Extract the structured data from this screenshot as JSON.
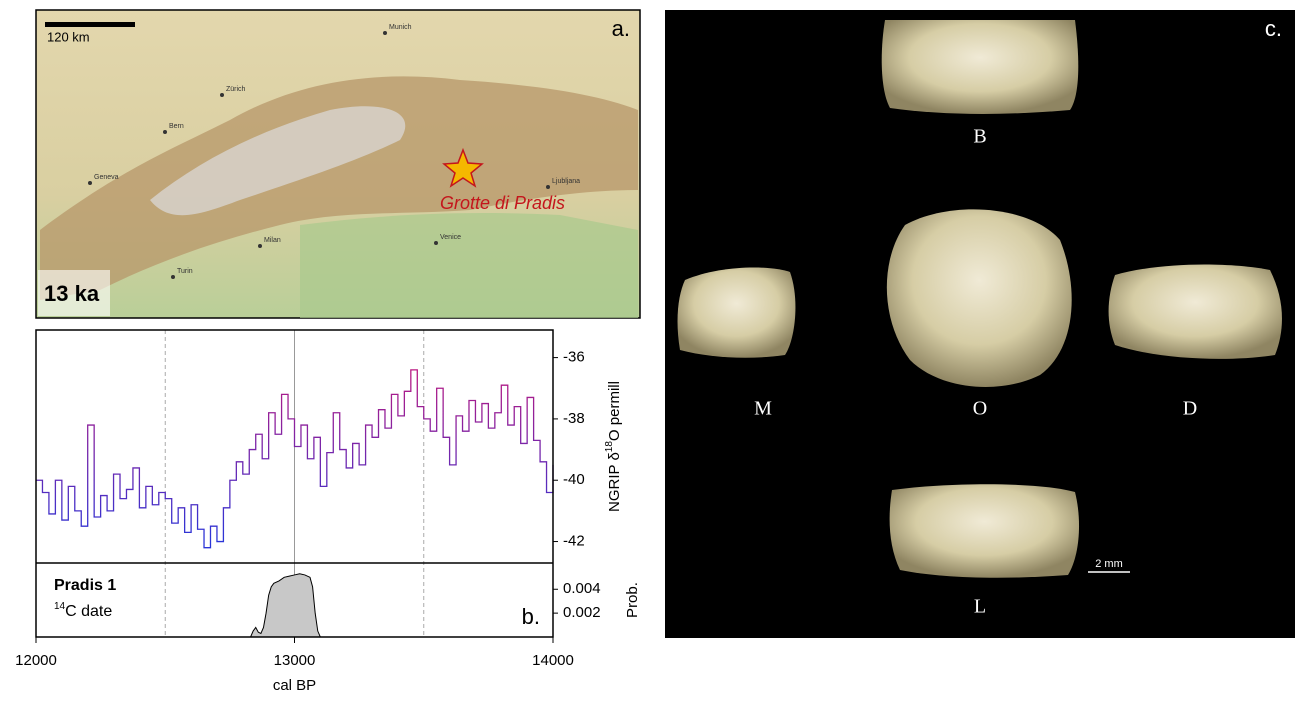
{
  "panel_a": {
    "label": "a.",
    "scale_label": "120 km",
    "age_label": "13 ka",
    "site_label": "Grotte di Pradis",
    "cities": [
      "Munich",
      "Zürich",
      "Bern",
      "Geneva",
      "Milan",
      "Turin",
      "Venice",
      "Ljubljana"
    ]
  },
  "chart_data": [
    {
      "type": "line",
      "label": "b.",
      "x_label": "cal BP",
      "y_label": {
        "before": "NGRIP δ",
        "sup": "18",
        "after": "O permill"
      },
      "colors": [
        "#c4177c",
        "#2b35d8"
      ],
      "x": [
        12000,
        12025,
        12050,
        12075,
        12100,
        12125,
        12150,
        12175,
        12200,
        12225,
        12250,
        12275,
        12300,
        12325,
        12350,
        12375,
        12400,
        12425,
        12450,
        12475,
        12500,
        12525,
        12550,
        12575,
        12600,
        12625,
        12650,
        12675,
        12700,
        12725,
        12750,
        12775,
        12800,
        12825,
        12850,
        12875,
        12900,
        12925,
        12950,
        12975,
        13000,
        13025,
        13050,
        13075,
        13100,
        13125,
        13150,
        13175,
        13200,
        13225,
        13250,
        13275,
        13300,
        13325,
        13350,
        13375,
        13400,
        13425,
        13450,
        13475,
        13500,
        13525,
        13550,
        13575,
        13600,
        13625,
        13650,
        13675,
        13700,
        13725,
        13750,
        13775,
        13800,
        13825,
        13850,
        13875,
        13900,
        13925,
        13950,
        13975,
        14000
      ],
      "values": [
        -40.0,
        -40.4,
        -41.1,
        -40.0,
        -41.3,
        -40.2,
        -41.0,
        -41.5,
        -38.2,
        -41.2,
        -40.5,
        -41.0,
        -39.8,
        -40.6,
        -40.3,
        -39.6,
        -40.9,
        -40.2,
        -40.8,
        -40.4,
        -40.6,
        -41.4,
        -40.9,
        -41.7,
        -40.8,
        -41.6,
        -42.2,
        -41.5,
        -42.0,
        -40.9,
        -40.0,
        -39.4,
        -39.8,
        -39.0,
        -38.5,
        -39.3,
        -37.8,
        -38.5,
        -37.2,
        -38.0,
        -38.9,
        -38.2,
        -39.3,
        -38.6,
        -40.2,
        -39.1,
        -37.8,
        -39.0,
        -39.6,
        -38.8,
        -39.5,
        -38.2,
        -38.6,
        -37.7,
        -38.3,
        -37.2,
        -37.9,
        -37.1,
        -36.4,
        -37.6,
        -38.0,
        -38.4,
        -37.0,
        -38.6,
        -39.5,
        -37.9,
        -38.4,
        -37.4,
        -38.1,
        -37.5,
        -38.3,
        -37.8,
        -36.9,
        -38.2,
        -37.6,
        -38.8,
        -37.3,
        -38.7,
        -39.4,
        -40.4,
        -39.5
      ],
      "xlim": [
        12000,
        14000
      ],
      "xticks": [
        12000,
        13000,
        14000
      ],
      "grid_x": [
        12500,
        13500
      ],
      "reference_x": 13000,
      "ylim": [
        -42.7,
        -35.1
      ],
      "yticks": [
        -42,
        -40,
        -38,
        -36
      ]
    },
    {
      "type": "area",
      "title": "Pradis 1",
      "subtitle": {
        "sup": "14",
        "after": "C date"
      },
      "y_label": "Prob.",
      "color": "#c8c8c8",
      "x": [
        12830,
        12840,
        12850,
        12860,
        12870,
        12880,
        12890,
        12900,
        12910,
        12920,
        12940,
        12960,
        12980,
        13000,
        13020,
        13040,
        13060,
        13070,
        13080,
        13090,
        13100
      ],
      "values": [
        0,
        0.0005,
        0.0008,
        0.0004,
        0.0003,
        0.0008,
        0.002,
        0.0035,
        0.0042,
        0.0045,
        0.0047,
        0.005,
        0.0051,
        0.0052,
        0.0053,
        0.0052,
        0.005,
        0.0042,
        0.002,
        0.0005,
        0
      ],
      "xlim": [
        12000,
        14000
      ],
      "ylim": [
        0,
        0.0062
      ],
      "yticks": [
        0.002,
        0.004
      ]
    }
  ],
  "panel_c": {
    "label": "c.",
    "views": [
      "B",
      "M",
      "O",
      "D",
      "L"
    ],
    "scale_label": "2 mm"
  }
}
